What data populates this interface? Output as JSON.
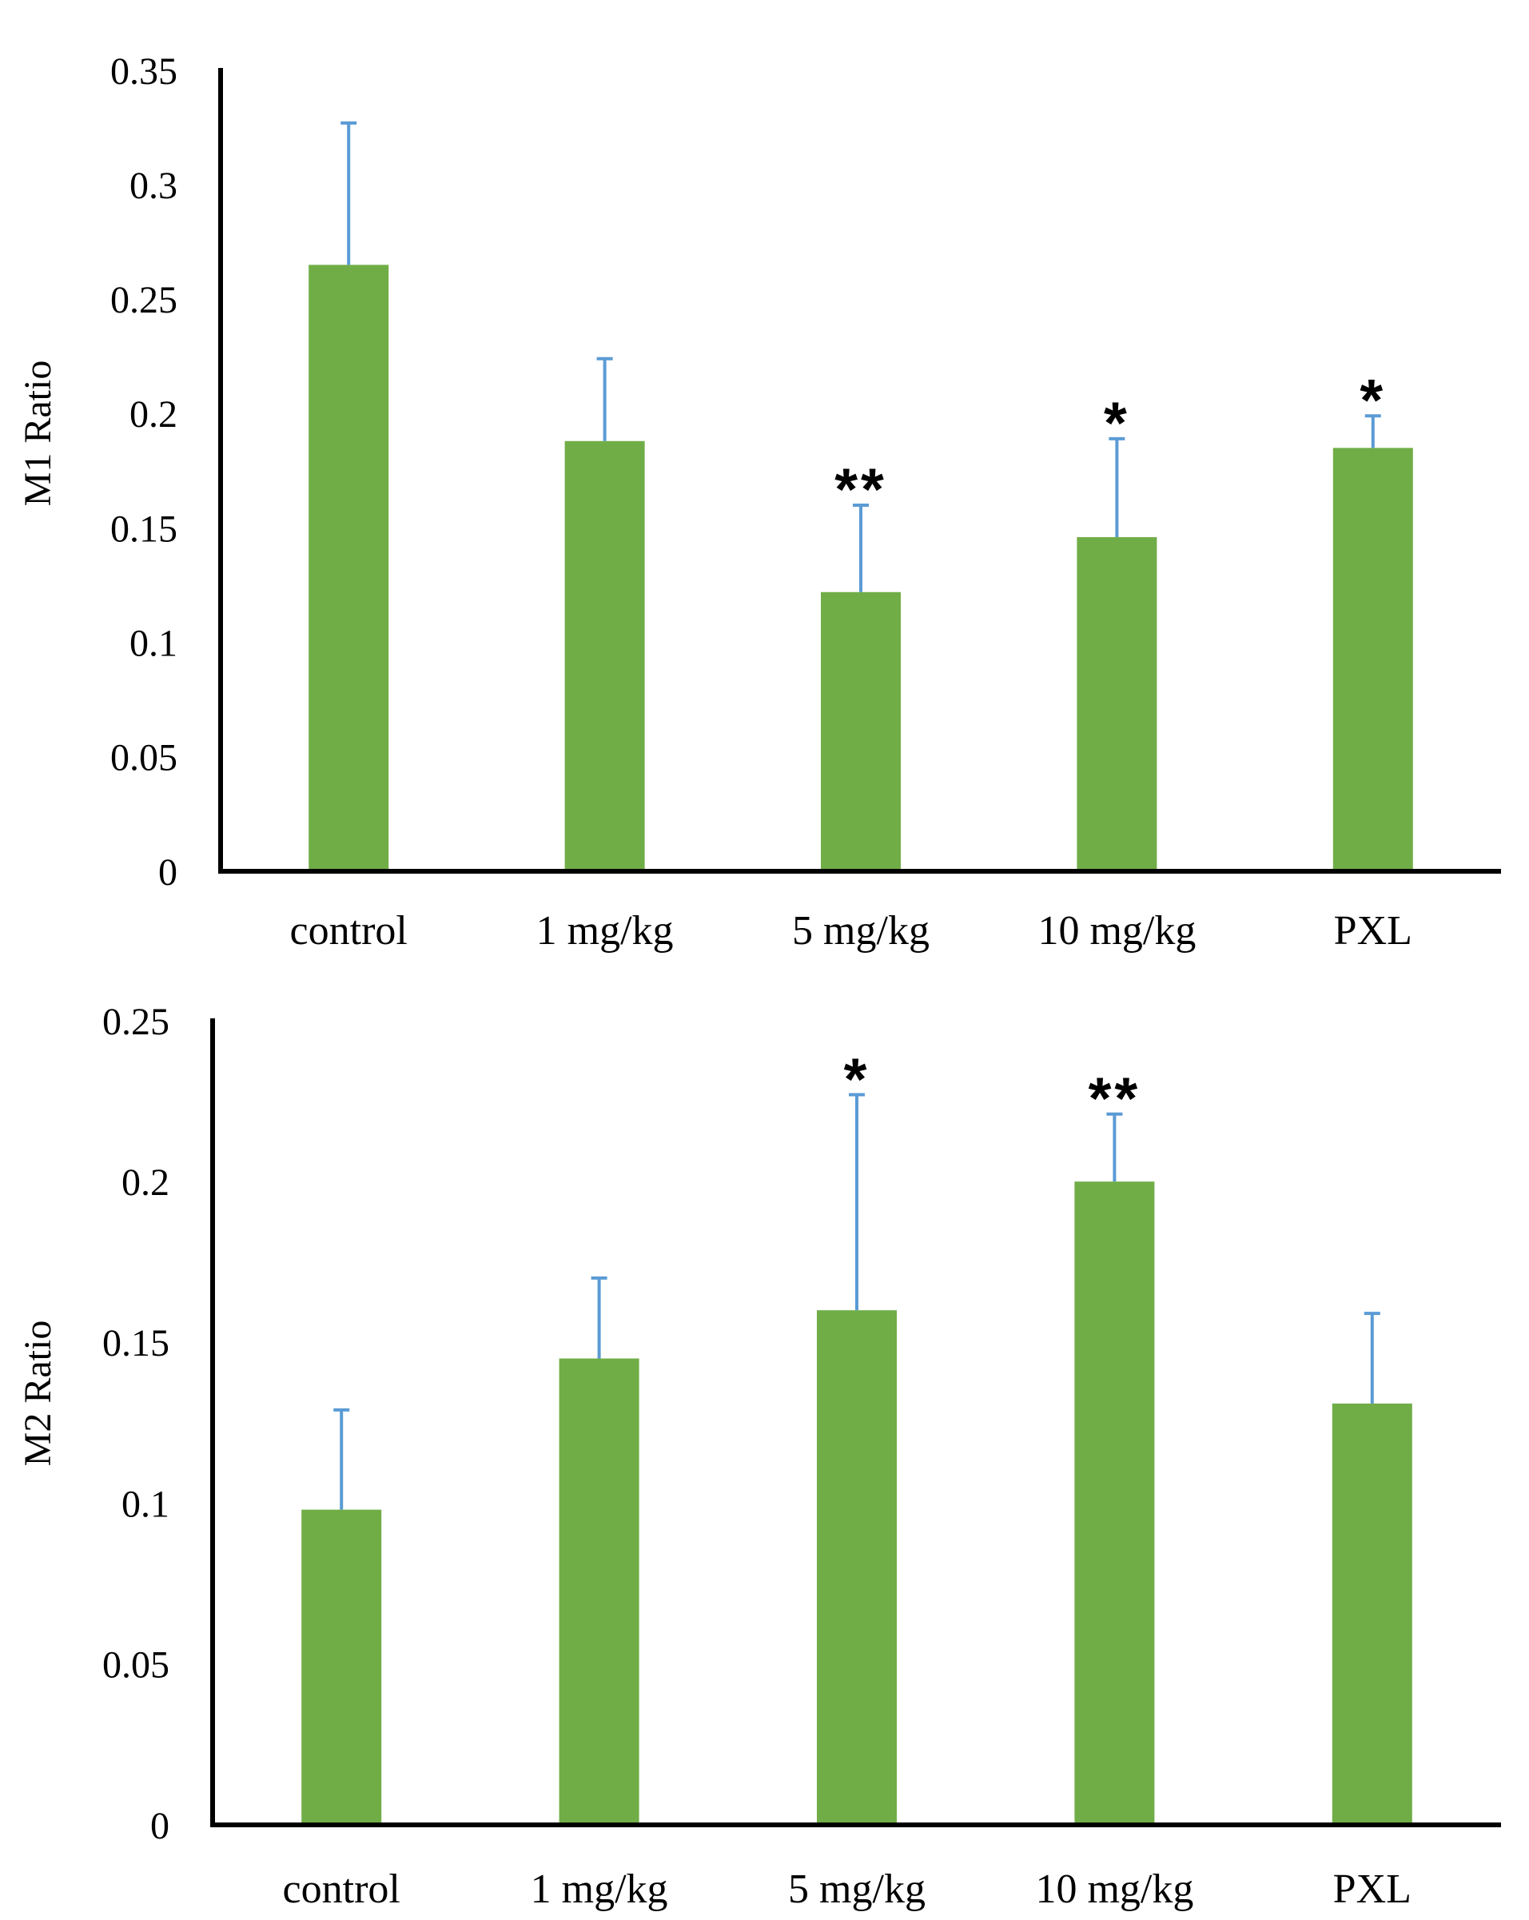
{
  "colors": {
    "bar": "#70AD47",
    "error_bar": "#5B9BD5",
    "axis": "#000000"
  },
  "chart_data": [
    {
      "type": "bar",
      "title": "",
      "xlabel": "",
      "ylabel": "M1 Ratio",
      "ylim": [
        0,
        0.35
      ],
      "yticks": [
        0,
        0.05,
        0.1,
        0.15,
        0.2,
        0.25,
        0.3,
        0.35
      ],
      "ytick_labels": [
        "0",
        "0.05",
        "0.1",
        "0.15",
        "0.2",
        "0.25",
        "0.3",
        "0.35"
      ],
      "grid": false,
      "categories": [
        "control",
        "1 mg/kg",
        "5 mg/kg",
        "10 mg/kg",
        "PXL"
      ],
      "values": [
        0.265,
        0.188,
        0.122,
        0.146,
        0.185
      ],
      "error_upper": [
        0.062,
        0.036,
        0.038,
        0.043,
        0.014
      ],
      "significance": [
        "",
        "",
        "**",
        "*",
        "*"
      ]
    },
    {
      "type": "bar",
      "title": "",
      "xlabel": "",
      "ylabel": "M2 Ratio",
      "ylim": [
        0,
        0.25
      ],
      "yticks": [
        0,
        0.05,
        0.1,
        0.15,
        0.2,
        0.25
      ],
      "ytick_labels": [
        "0",
        "0.05",
        "0.1",
        "0.15",
        "0.2",
        "0.25"
      ],
      "grid": false,
      "categories": [
        "control",
        "1 mg/kg",
        "5 mg/kg",
        "10 mg/kg",
        "PXL"
      ],
      "values": [
        0.098,
        0.145,
        0.16,
        0.2,
        0.131
      ],
      "error_upper": [
        0.031,
        0.025,
        0.067,
        0.021,
        0.028
      ],
      "significance": [
        "",
        "",
        "*",
        "**",
        ""
      ]
    }
  ]
}
